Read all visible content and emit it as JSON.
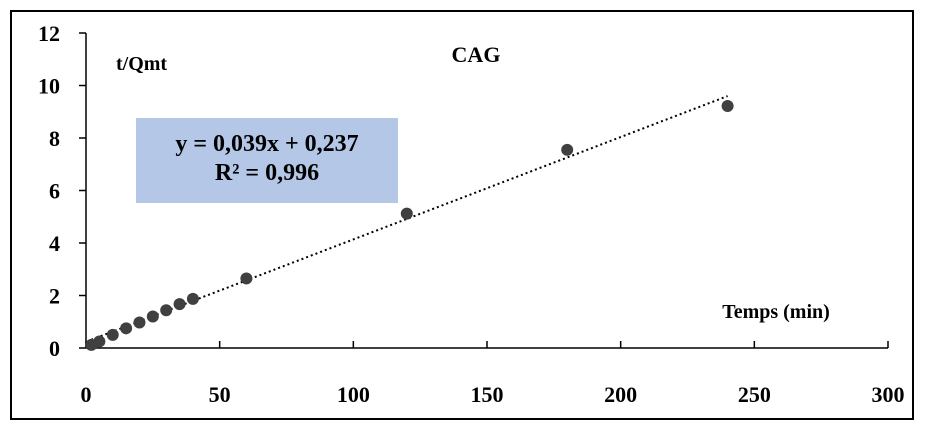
{
  "chart_data": {
    "type": "scatter",
    "title": "CAG",
    "xlabel": "Temps (min)",
    "ylabel": "t/Qmt",
    "xlim": [
      0,
      300
    ],
    "ylim": [
      0,
      12
    ],
    "x_ticks": [
      0,
      50,
      100,
      150,
      200,
      250,
      300
    ],
    "y_ticks": [
      0,
      2,
      4,
      6,
      8,
      10,
      12
    ],
    "grid": false,
    "legend": "none",
    "marker_color": "#404040",
    "series": [
      {
        "x": [
          2,
          5,
          10,
          15,
          20,
          25,
          30,
          35,
          40,
          60,
          120,
          180,
          240
        ],
        "y": [
          0.12,
          0.25,
          0.5,
          0.75,
          0.97,
          1.2,
          1.44,
          1.67,
          1.87,
          2.65,
          5.12,
          7.55,
          9.22
        ]
      }
    ],
    "trendline": {
      "type": "linear",
      "style": "dotted",
      "slope": 0.039,
      "intercept": 0.237,
      "x_range": [
        2,
        240
      ],
      "equation": "y = 0,039x + 0,237",
      "r_squared": "R² = 0,996"
    }
  }
}
